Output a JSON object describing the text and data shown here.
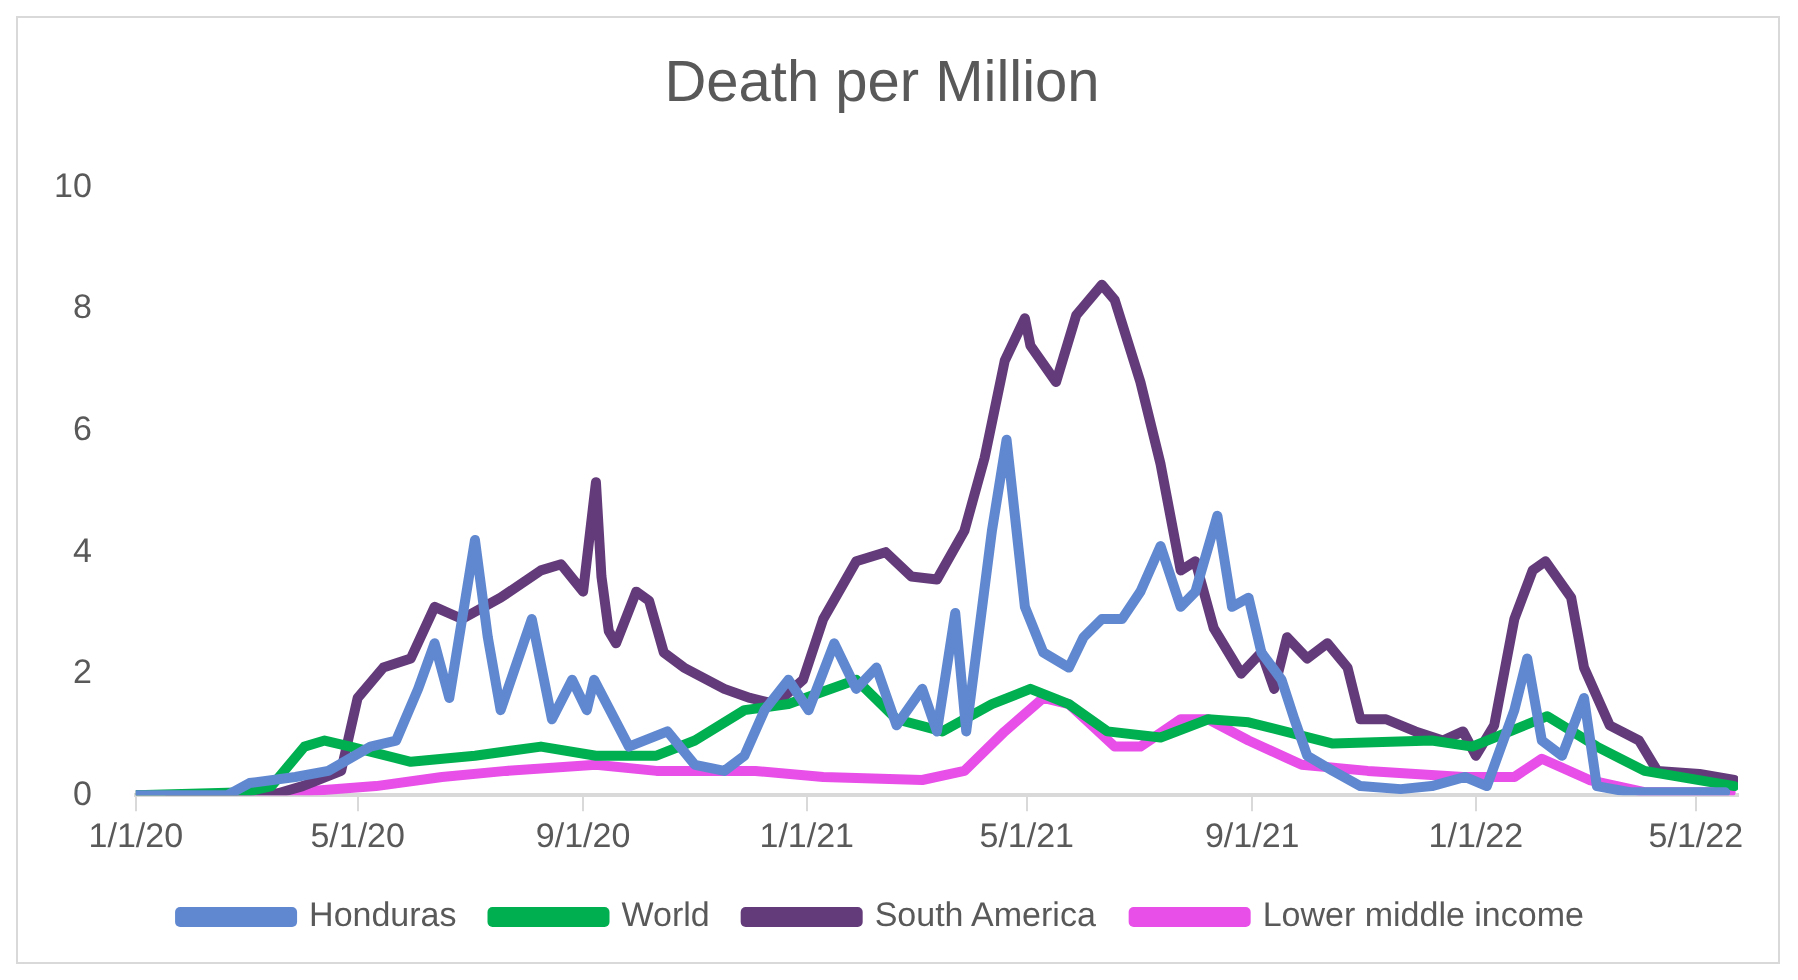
{
  "chart_data": {
    "type": "line",
    "title": "Death per Million",
    "marker": "none",
    "legend": "bottom",
    "xlim": [
      "2020-01-01",
      "2022-05-24"
    ],
    "xticks": [
      {
        "value": "2020-01-01",
        "label": "1/1/20"
      },
      {
        "value": "2020-05-01",
        "label": "5/1/20"
      },
      {
        "value": "2020-09-01",
        "label": "9/1/20"
      },
      {
        "value": "2021-01-01",
        "label": "1/1/21"
      },
      {
        "value": "2021-05-01",
        "label": "5/1/21"
      },
      {
        "value": "2021-09-01",
        "label": "9/1/21"
      },
      {
        "value": "2022-01-01",
        "label": "1/1/22"
      },
      {
        "value": "2022-05-01",
        "label": "5/1/22"
      }
    ],
    "ylim": [
      0,
      10
    ],
    "yticks": [
      0,
      2,
      4,
      6,
      8,
      10
    ],
    "series": [
      {
        "name": "Honduras",
        "color": "#6088d0",
        "x": [
          "2020-01-01",
          "2020-02-20",
          "2020-03-03",
          "2020-03-28",
          "2020-04-15",
          "2020-05-08",
          "2020-05-22",
          "2020-06-03",
          "2020-06-12",
          "2020-06-20",
          "2020-07-04",
          "2020-07-11",
          "2020-07-18",
          "2020-08-04",
          "2020-08-15",
          "2020-08-26",
          "2020-09-03",
          "2020-09-07",
          "2020-09-26",
          "2020-10-17",
          "2020-11-01",
          "2020-11-17",
          "2020-11-28",
          "2020-12-09",
          "2020-12-22",
          "2021-01-02",
          "2021-01-16",
          "2021-01-28",
          "2021-02-08",
          "2021-02-19",
          "2021-03-05",
          "2021-03-13",
          "2021-03-23",
          "2021-03-29",
          "2021-04-12",
          "2021-04-20",
          "2021-04-30",
          "2021-05-10",
          "2021-05-24",
          "2021-06-01",
          "2021-06-11",
          "2021-06-22",
          "2021-07-02",
          "2021-07-13",
          "2021-07-24",
          "2021-08-01",
          "2021-08-13",
          "2021-08-21",
          "2021-08-30",
          "2021-09-06",
          "2021-09-17",
          "2021-09-24",
          "2021-10-01",
          "2021-10-15",
          "2021-10-30",
          "2021-11-21",
          "2021-12-08",
          "2021-12-26",
          "2022-01-07",
          "2022-01-22",
          "2022-01-29",
          "2022-02-06",
          "2022-02-17",
          "2022-03-01",
          "2022-03-08",
          "2022-03-26",
          "2022-04-25",
          "2022-05-17"
        ],
        "values": [
          0,
          0,
          0.2,
          0.3,
          0.4,
          0.8,
          0.9,
          1.75,
          2.5,
          1.6,
          4.2,
          2.6,
          1.4,
          2.9,
          1.25,
          1.9,
          1.4,
          1.9,
          0.8,
          1.05,
          0.5,
          0.4,
          0.65,
          1.4,
          1.9,
          1.4,
          2.5,
          1.75,
          2.1,
          1.15,
          1.75,
          1.05,
          3.0,
          1.05,
          4.35,
          5.85,
          3.1,
          2.35,
          2.1,
          2.6,
          2.9,
          2.9,
          3.35,
          4.1,
          3.1,
          3.35,
          4.6,
          3.1,
          3.25,
          2.35,
          1.9,
          1.25,
          0.65,
          0.4,
          0.15,
          0.1,
          0.15,
          0.3,
          0.15,
          1.4,
          2.25,
          0.9,
          0.65,
          1.6,
          0.15,
          0.05,
          0.05,
          0.05
        ]
      },
      {
        "name": "World",
        "color": "#00b050",
        "x": [
          "2020-01-01",
          "2020-03-01",
          "2020-03-15",
          "2020-04-02",
          "2020-04-13",
          "2020-04-27",
          "2020-05-30",
          "2020-07-04",
          "2020-08-09",
          "2020-09-08",
          "2020-10-11",
          "2020-11-01",
          "2020-11-28",
          "2020-12-22",
          "2021-01-28",
          "2021-02-19",
          "2021-03-16",
          "2021-04-12",
          "2021-05-03",
          "2021-05-24",
          "2021-06-14",
          "2021-07-13",
          "2021-08-08",
          "2021-08-30",
          "2021-10-15",
          "2021-12-08",
          "2021-12-30",
          "2022-02-09",
          "2022-03-08",
          "2022-04-03",
          "2022-05-22"
        ],
        "values": [
          0,
          0.05,
          0.15,
          0.8,
          0.9,
          0.8,
          0.55,
          0.65,
          0.8,
          0.65,
          0.65,
          0.9,
          1.4,
          1.5,
          1.9,
          1.25,
          1.05,
          1.5,
          1.75,
          1.5,
          1.05,
          0.95,
          1.25,
          1.2,
          0.85,
          0.9,
          0.8,
          1.3,
          0.8,
          0.4,
          0.15
        ]
      },
      {
        "name": "South America",
        "color": "#643b7a",
        "x": [
          "2020-01-01",
          "2020-03-15",
          "2020-04-01",
          "2020-04-22",
          "2020-05-01",
          "2020-05-15",
          "2020-05-30",
          "2020-06-12",
          "2020-06-27",
          "2020-07-18",
          "2020-08-09",
          "2020-08-20",
          "2020-09-01",
          "2020-09-08",
          "2020-09-11",
          "2020-09-15",
          "2020-09-19",
          "2020-09-30",
          "2020-10-07",
          "2020-10-15",
          "2020-10-26",
          "2020-11-17",
          "2020-12-01",
          "2020-12-15",
          "2020-12-30",
          "2021-01-10",
          "2021-01-28",
          "2021-02-13",
          "2021-02-27",
          "2021-03-13",
          "2021-03-28",
          "2021-04-08",
          "2021-04-19",
          "2021-04-30",
          "2021-05-03",
          "2021-05-17",
          "2021-05-28",
          "2021-06-11",
          "2021-06-18",
          "2021-07-02",
          "2021-07-13",
          "2021-07-24",
          "2021-08-01",
          "2021-08-11",
          "2021-08-26",
          "2021-09-06",
          "2021-09-13",
          "2021-09-20",
          "2021-10-01",
          "2021-10-12",
          "2021-10-23",
          "2021-10-30",
          "2021-11-13",
          "2021-11-29",
          "2021-12-14",
          "2021-12-25",
          "2022-01-01",
          "2022-01-11",
          "2022-01-22",
          "2022-02-01",
          "2022-02-08",
          "2022-02-22",
          "2022-03-01",
          "2022-03-15",
          "2022-03-31",
          "2022-04-10",
          "2022-05-03",
          "2022-05-22"
        ],
        "values": [
          0,
          0,
          0.15,
          0.4,
          1.6,
          2.1,
          2.25,
          3.1,
          2.9,
          3.25,
          3.7,
          3.8,
          3.35,
          5.15,
          3.6,
          2.7,
          2.5,
          3.35,
          3.2,
          2.35,
          2.1,
          1.75,
          1.6,
          1.5,
          1.9,
          2.9,
          3.85,
          4.0,
          3.6,
          3.55,
          4.35,
          5.55,
          7.15,
          7.85,
          7.4,
          6.8,
          7.9,
          8.4,
          8.15,
          6.8,
          5.45,
          3.7,
          3.85,
          2.75,
          2.0,
          2.35,
          1.75,
          2.6,
          2.25,
          2.5,
          2.1,
          1.25,
          1.25,
          1.05,
          0.9,
          1.05,
          0.65,
          1.15,
          2.9,
          3.7,
          3.85,
          3.25,
          2.1,
          1.15,
          0.9,
          0.4,
          0.35,
          0.25
        ]
      },
      {
        "name": "Lower middle income",
        "color": "#e84ee8",
        "x": [
          "2020-01-20",
          "2020-03-01",
          "2020-03-28",
          "2020-05-11",
          "2020-06-16",
          "2020-07-21",
          "2020-09-08",
          "2020-10-11",
          "2020-12-04",
          "2021-01-10",
          "2021-03-05",
          "2021-03-28",
          "2021-04-19",
          "2021-05-10",
          "2021-05-24",
          "2021-06-18",
          "2021-07-02",
          "2021-07-24",
          "2021-08-08",
          "2021-08-30",
          "2021-09-28",
          "2021-11-03",
          "2021-12-25",
          "2022-01-22",
          "2022-02-06",
          "2022-03-04",
          "2022-04-03",
          "2022-05-20"
        ],
        "values": [
          0,
          0,
          0.05,
          0.15,
          0.3,
          0.4,
          0.5,
          0.4,
          0.4,
          0.3,
          0.25,
          0.4,
          1.05,
          1.6,
          1.5,
          0.8,
          0.8,
          1.25,
          1.25,
          0.9,
          0.5,
          0.4,
          0.3,
          0.3,
          0.6,
          0.25,
          0.05,
          0.05
        ]
      }
    ]
  }
}
